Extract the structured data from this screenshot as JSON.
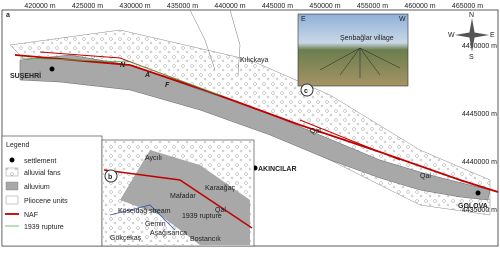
{
  "panel_a": {
    "label": "a",
    "easting_labels": [
      "420000 m",
      "425000 m",
      "430000 m",
      "435000 m",
      "440000 m",
      "445000 m",
      "450000 m",
      "455000 m",
      "460000 m",
      "465000 m"
    ],
    "northing_labels": [
      "4450000 m",
      "4445000 m",
      "4440000 m",
      "4435000 m"
    ],
    "places": [
      "SUŞEHRİ",
      "Kılıçkaya",
      "AKINCILAR",
      "GOLOVA"
    ],
    "fault_letters": [
      "N",
      "A",
      "F"
    ],
    "units": [
      "Qal",
      "Qal"
    ],
    "compass": [
      "N",
      "S",
      "E",
      "W"
    ]
  },
  "inset_c": {
    "label": "c",
    "left": "E",
    "right": "W",
    "village": "Şenbağlar village"
  },
  "legend": {
    "title": "Legend",
    "items": [
      "settlement",
      "alluvial fans",
      "alluvium",
      "Pliocene units",
      "NAF",
      "1939 rupture"
    ]
  },
  "inset_b": {
    "label": "b",
    "places": [
      "Aycılı",
      "Mafadar",
      "Karaağaç",
      "Gökçekaş",
      "Aşağısarıca",
      "Bostancık"
    ],
    "streams": [
      "Köseidağ stream",
      "Gemin"
    ],
    "unit": "Qal",
    "rupture": "1939 rupture"
  }
}
